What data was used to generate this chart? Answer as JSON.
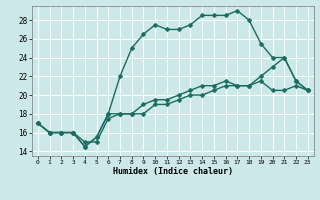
{
  "xlabel": "Humidex (Indice chaleur)",
  "bg_color": "#cce8e8",
  "line_color": "#1a6b60",
  "grid_color": "#ffffff",
  "xlim": [
    -0.5,
    23.5
  ],
  "ylim": [
    13.5,
    29.5
  ],
  "xticks": [
    0,
    1,
    2,
    3,
    4,
    5,
    6,
    7,
    8,
    9,
    10,
    11,
    12,
    13,
    14,
    15,
    16,
    17,
    18,
    19,
    20,
    21,
    22,
    23
  ],
  "yticks": [
    14,
    16,
    18,
    20,
    22,
    24,
    26,
    28
  ],
  "line1_x": [
    0,
    1,
    2,
    3,
    4,
    5,
    6,
    7,
    8,
    9,
    10,
    11,
    12,
    13,
    14,
    15,
    16,
    17,
    18,
    19,
    20,
    21,
    22,
    23
  ],
  "line1_y": [
    17,
    16,
    16,
    16,
    15,
    15,
    17.5,
    18,
    18,
    18,
    19,
    19,
    19.5,
    20,
    20,
    20.5,
    21,
    21,
    21,
    21.5,
    20.5,
    20.5,
    21,
    20.5
  ],
  "line2_x": [
    0,
    1,
    2,
    3,
    4,
    5,
    6,
    7,
    8,
    9,
    10,
    11,
    12,
    13,
    14,
    15,
    16,
    17,
    18,
    19,
    20,
    21,
    22,
    23
  ],
  "line2_y": [
    17,
    16,
    16,
    16,
    14.5,
    15.5,
    18,
    22,
    25,
    26.5,
    27.5,
    27,
    27,
    27.5,
    28.5,
    28.5,
    28.5,
    29,
    28,
    25.5,
    24,
    24,
    21.5,
    20.5
  ],
  "line3_x": [
    0,
    1,
    2,
    3,
    4,
    5,
    6,
    7,
    8,
    9,
    10,
    11,
    12,
    13,
    14,
    15,
    16,
    17,
    18,
    19,
    20,
    21,
    22,
    23
  ],
  "line3_y": [
    17,
    16,
    16,
    16,
    14.5,
    15.5,
    18,
    18,
    18,
    19,
    19.5,
    19.5,
    20,
    20.5,
    21,
    21,
    21.5,
    21,
    21,
    22,
    23,
    24,
    21.5,
    20.5
  ],
  "markersize": 2.5,
  "linewidth": 1.0
}
